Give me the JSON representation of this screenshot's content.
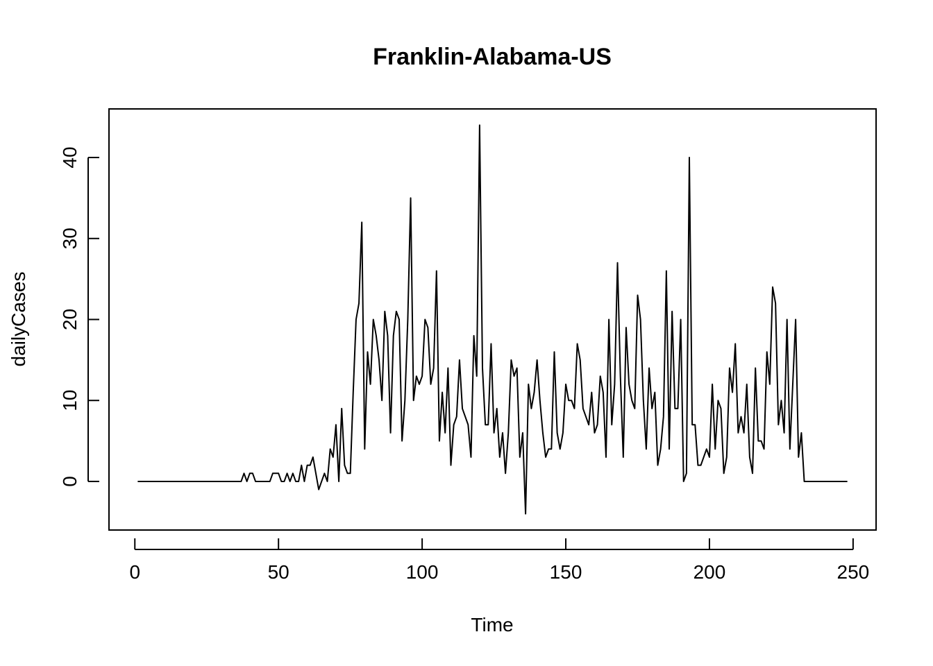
{
  "chart_data": {
    "type": "line",
    "title": "Franklin-Alabama-US",
    "xlabel": "Time",
    "ylabel": "dailyCases",
    "xlim": [
      -9,
      258
    ],
    "ylim": [
      -6,
      46
    ],
    "xticks": [
      0,
      50,
      100,
      150,
      200,
      250
    ],
    "yticks": [
      0,
      10,
      20,
      30,
      40
    ],
    "grid": false,
    "legend": "none",
    "colors": {
      "line": "#000000",
      "frame": "#000000"
    },
    "series": [
      {
        "x_start": 1,
        "values": [
          0,
          0,
          0,
          0,
          0,
          0,
          0,
          0,
          0,
          0,
          0,
          0,
          0,
          0,
          0,
          0,
          0,
          0,
          0,
          0,
          0,
          0,
          0,
          0,
          0,
          0,
          0,
          0,
          0,
          0,
          0,
          0,
          0,
          0,
          0,
          0,
          0,
          1,
          0,
          1,
          1,
          0,
          0,
          0,
          0,
          0,
          0,
          1,
          1,
          1,
          0,
          0,
          1,
          0,
          1,
          0,
          0,
          2,
          0,
          2,
          2,
          3,
          1,
          -1,
          0,
          1,
          0,
          4,
          3,
          7,
          0,
          9,
          2,
          1,
          1,
          11,
          20,
          22,
          32,
          4,
          16,
          12,
          20,
          18,
          15,
          10,
          21,
          18,
          6,
          18,
          21,
          20,
          5,
          10,
          20,
          35,
          10,
          13,
          12,
          13,
          20,
          19,
          12,
          14,
          26,
          5,
          11,
          6,
          14,
          2,
          7,
          8,
          15,
          9,
          8,
          7,
          3,
          18,
          13,
          44,
          14,
          7,
          7,
          17,
          6,
          9,
          3,
          6,
          1,
          6,
          15,
          13,
          14,
          3,
          6,
          -4,
          12,
          9,
          11,
          15,
          10,
          6,
          3,
          4,
          4,
          16,
          6,
          4,
          6,
          12,
          10,
          10,
          9,
          17,
          15,
          9,
          8,
          7,
          11,
          6,
          7,
          13,
          11,
          3,
          20,
          7,
          12,
          27,
          13,
          3,
          19,
          12,
          10,
          9,
          23,
          20,
          10,
          4,
          14,
          9,
          11,
          2,
          4,
          8,
          26,
          4,
          21,
          9,
          9,
          20,
          0,
          1,
          40,
          7,
          7,
          2,
          2,
          3,
          4,
          3,
          12,
          4,
          10,
          9,
          1,
          3,
          14,
          11,
          17,
          6,
          8,
          6,
          12,
          3,
          1,
          14,
          5,
          5,
          4,
          16,
          12,
          24,
          22,
          7,
          10,
          6,
          20,
          4,
          12,
          20,
          3,
          6,
          0,
          0,
          0,
          0,
          0,
          0,
          0,
          0,
          0,
          0,
          0,
          0,
          0,
          0,
          0,
          0
        ]
      }
    ]
  }
}
